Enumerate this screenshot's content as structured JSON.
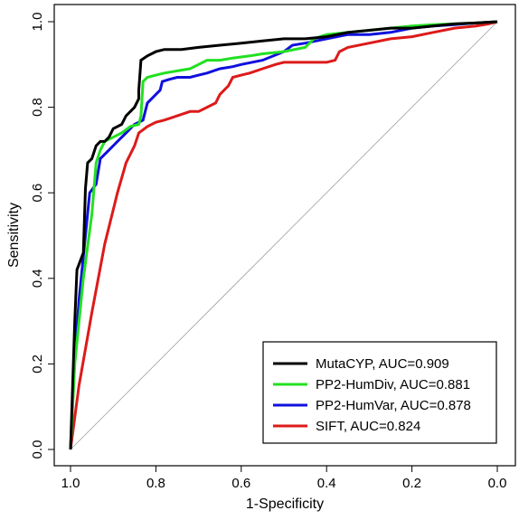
{
  "chart_data": {
    "type": "line",
    "title": "",
    "xlabel": "1-Specificity",
    "ylabel": "Sensitivity",
    "xlim": [
      1.0,
      0.0
    ],
    "ylim": [
      0.0,
      1.0
    ],
    "x_reversed": true,
    "xticks": [
      1.0,
      0.8,
      0.6,
      0.4,
      0.2,
      0.0
    ],
    "xtick_labels": [
      "1.0",
      "0.8",
      "0.6",
      "0.4",
      "0.2",
      "0.0"
    ],
    "yticks": [
      0.0,
      0.2,
      0.4,
      0.6,
      0.8,
      1.0
    ],
    "ytick_labels": [
      "0.0",
      "0.2",
      "0.4",
      "0.6",
      "0.8",
      "1.0"
    ],
    "grid": false,
    "legend_position": "bottom-right",
    "reference_line": {
      "color": "#a0a0a0",
      "from": [
        1.0,
        0.0
      ],
      "to": [
        0.0,
        1.0
      ]
    },
    "series": [
      {
        "name": "MutaCYP, AUC=0.909",
        "color": "#000000",
        "points": [
          [
            1.0,
            0.0
          ],
          [
            0.99,
            0.3
          ],
          [
            0.985,
            0.42
          ],
          [
            0.97,
            0.46
          ],
          [
            0.965,
            0.61
          ],
          [
            0.96,
            0.67
          ],
          [
            0.95,
            0.68
          ],
          [
            0.94,
            0.71
          ],
          [
            0.93,
            0.72
          ],
          [
            0.92,
            0.72
          ],
          [
            0.91,
            0.73
          ],
          [
            0.9,
            0.75
          ],
          [
            0.88,
            0.76
          ],
          [
            0.87,
            0.78
          ],
          [
            0.85,
            0.8
          ],
          [
            0.84,
            0.82
          ],
          [
            0.84,
            0.84
          ],
          [
            0.835,
            0.91
          ],
          [
            0.82,
            0.92
          ],
          [
            0.8,
            0.93
          ],
          [
            0.78,
            0.935
          ],
          [
            0.74,
            0.935
          ],
          [
            0.7,
            0.94
          ],
          [
            0.65,
            0.945
          ],
          [
            0.6,
            0.95
          ],
          [
            0.55,
            0.955
          ],
          [
            0.5,
            0.96
          ],
          [
            0.45,
            0.96
          ],
          [
            0.4,
            0.965
          ],
          [
            0.35,
            0.975
          ],
          [
            0.3,
            0.98
          ],
          [
            0.25,
            0.985
          ],
          [
            0.2,
            0.985
          ],
          [
            0.15,
            0.99
          ],
          [
            0.1,
            0.995
          ],
          [
            0.05,
            0.997
          ],
          [
            0.0,
            1.0
          ]
        ]
      },
      {
        "name": "PP2-HumDiv, AUC=0.881",
        "color": "#22e022",
        "points": [
          [
            1.0,
            0.0
          ],
          [
            0.99,
            0.2
          ],
          [
            0.97,
            0.4
          ],
          [
            0.95,
            0.55
          ],
          [
            0.94,
            0.67
          ],
          [
            0.93,
            0.7
          ],
          [
            0.92,
            0.72
          ],
          [
            0.9,
            0.73
          ],
          [
            0.88,
            0.74
          ],
          [
            0.86,
            0.755
          ],
          [
            0.84,
            0.76
          ],
          [
            0.835,
            0.78
          ],
          [
            0.83,
            0.86
          ],
          [
            0.82,
            0.87
          ],
          [
            0.8,
            0.875
          ],
          [
            0.78,
            0.88
          ],
          [
            0.75,
            0.885
          ],
          [
            0.72,
            0.89
          ],
          [
            0.7,
            0.9
          ],
          [
            0.68,
            0.91
          ],
          [
            0.65,
            0.91
          ],
          [
            0.62,
            0.915
          ],
          [
            0.58,
            0.92
          ],
          [
            0.55,
            0.925
          ],
          [
            0.5,
            0.93
          ],
          [
            0.45,
            0.94
          ],
          [
            0.43,
            0.96
          ],
          [
            0.4,
            0.97
          ],
          [
            0.35,
            0.975
          ],
          [
            0.3,
            0.98
          ],
          [
            0.25,
            0.985
          ],
          [
            0.2,
            0.99
          ],
          [
            0.15,
            0.993
          ],
          [
            0.1,
            0.995
          ],
          [
            0.05,
            0.997
          ],
          [
            0.0,
            1.0
          ]
        ]
      },
      {
        "name": "PP2-HumVar, AUC=0.878",
        "color": "#1010dd",
        "points": [
          [
            1.0,
            0.0
          ],
          [
            0.99,
            0.22
          ],
          [
            0.98,
            0.35
          ],
          [
            0.965,
            0.5
          ],
          [
            0.955,
            0.6
          ],
          [
            0.94,
            0.62
          ],
          [
            0.93,
            0.68
          ],
          [
            0.91,
            0.7
          ],
          [
            0.89,
            0.72
          ],
          [
            0.87,
            0.74
          ],
          [
            0.85,
            0.76
          ],
          [
            0.83,
            0.77
          ],
          [
            0.82,
            0.81
          ],
          [
            0.8,
            0.83
          ],
          [
            0.79,
            0.84
          ],
          [
            0.785,
            0.86
          ],
          [
            0.77,
            0.865
          ],
          [
            0.75,
            0.87
          ],
          [
            0.72,
            0.87
          ],
          [
            0.7,
            0.875
          ],
          [
            0.68,
            0.88
          ],
          [
            0.65,
            0.89
          ],
          [
            0.62,
            0.895
          ],
          [
            0.6,
            0.9
          ],
          [
            0.55,
            0.91
          ],
          [
            0.5,
            0.93
          ],
          [
            0.48,
            0.945
          ],
          [
            0.45,
            0.95
          ],
          [
            0.4,
            0.96
          ],
          [
            0.35,
            0.97
          ],
          [
            0.3,
            0.97
          ],
          [
            0.25,
            0.975
          ],
          [
            0.2,
            0.985
          ],
          [
            0.15,
            0.99
          ],
          [
            0.1,
            0.993
          ],
          [
            0.05,
            0.997
          ],
          [
            0.0,
            1.0
          ]
        ]
      },
      {
        "name": "SIFT, AUC=0.824",
        "color": "#dd1a1a",
        "points": [
          [
            1.0,
            0.0
          ],
          [
            0.98,
            0.15
          ],
          [
            0.95,
            0.32
          ],
          [
            0.92,
            0.48
          ],
          [
            0.89,
            0.6
          ],
          [
            0.87,
            0.67
          ],
          [
            0.85,
            0.71
          ],
          [
            0.84,
            0.74
          ],
          [
            0.82,
            0.755
          ],
          [
            0.8,
            0.765
          ],
          [
            0.78,
            0.77
          ],
          [
            0.75,
            0.78
          ],
          [
            0.72,
            0.79
          ],
          [
            0.7,
            0.79
          ],
          [
            0.68,
            0.8
          ],
          [
            0.66,
            0.81
          ],
          [
            0.65,
            0.83
          ],
          [
            0.63,
            0.85
          ],
          [
            0.62,
            0.87
          ],
          [
            0.6,
            0.875
          ],
          [
            0.58,
            0.88
          ],
          [
            0.55,
            0.89
          ],
          [
            0.52,
            0.9
          ],
          [
            0.5,
            0.905
          ],
          [
            0.45,
            0.905
          ],
          [
            0.4,
            0.905
          ],
          [
            0.38,
            0.91
          ],
          [
            0.37,
            0.93
          ],
          [
            0.35,
            0.94
          ],
          [
            0.3,
            0.95
          ],
          [
            0.25,
            0.96
          ],
          [
            0.2,
            0.965
          ],
          [
            0.15,
            0.975
          ],
          [
            0.1,
            0.985
          ],
          [
            0.05,
            0.99
          ],
          [
            0.02,
            0.995
          ],
          [
            0.0,
            1.0
          ]
        ]
      }
    ]
  }
}
